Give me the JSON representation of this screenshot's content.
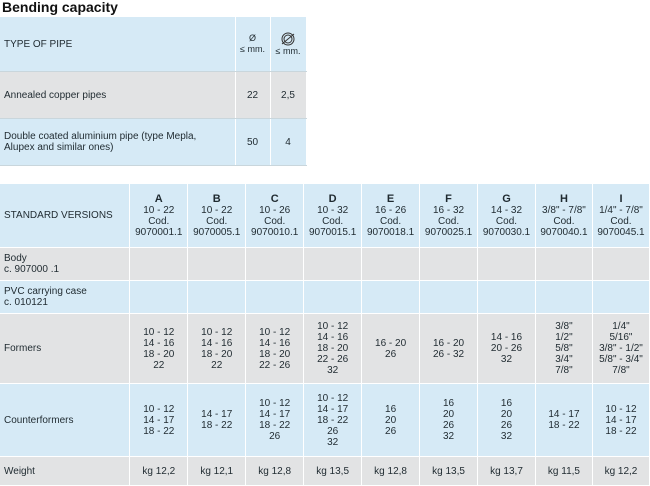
{
  "title": "Bending capacity",
  "capacity": {
    "header": {
      "type_label": "TYPE OF PIPE",
      "symbol1": "Ø",
      "unit1": "≤ mm.",
      "unit2": "≤ mm."
    },
    "rows": [
      {
        "label": "Annealed copper pipes",
        "v1": "22",
        "v2": "2,5"
      },
      {
        "label": "Double coated aluminium pipe (type Mepla, Alupex and similar ones)",
        "v1": "50",
        "v2": "4"
      }
    ]
  },
  "versions": {
    "header_label": "STANDARD VERSIONS",
    "columns": [
      {
        "letter": "A",
        "range": "10 - 22",
        "cod_label": "Cod.",
        "code": "9070001.1"
      },
      {
        "letter": "B",
        "range": "10 - 22",
        "cod_label": "Cod.",
        "code": "9070005.1"
      },
      {
        "letter": "C",
        "range": "10 - 26",
        "cod_label": "Cod.",
        "code": "9070010.1"
      },
      {
        "letter": "D",
        "range": "10 - 32",
        "cod_label": "Cod.",
        "code": "9070015.1"
      },
      {
        "letter": "E",
        "range": "16 - 26",
        "cod_label": "Cod.",
        "code": "9070018.1"
      },
      {
        "letter": "F",
        "range": "16 - 32",
        "cod_label": "Cod.",
        "code": "9070025.1"
      },
      {
        "letter": "G",
        "range": "14 - 32",
        "cod_label": "Cod.",
        "code": "9070030.1"
      },
      {
        "letter": "H",
        "range": "3/8\" - 7/8\"",
        "cod_label": "Cod.",
        "code": "9070040.1"
      },
      {
        "letter": "I",
        "range": "1/4\" - 7/8\"",
        "cod_label": "Cod.",
        "code": "9070045.1"
      }
    ],
    "body_label": [
      "Body",
      "c. 907000 .1"
    ],
    "pvc_label": [
      "PVC carrying case",
      "c. 010121"
    ],
    "dot": "●",
    "formers_label": "Formers",
    "formers": [
      [
        "10 - 12",
        "14 - 16",
        "18 - 20",
        "22"
      ],
      [
        "10 - 12",
        "14 - 16",
        "18 - 20",
        "22"
      ],
      [
        "10 - 12",
        "14 - 16",
        "18 - 20",
        "22 - 26"
      ],
      [
        "10 - 12",
        "14 - 16",
        "18 - 20",
        "22 - 26",
        "32"
      ],
      [
        "16 - 20",
        "26"
      ],
      [
        "16 - 20",
        "26 - 32"
      ],
      [
        "14 - 16",
        "20 - 26",
        "32"
      ],
      [
        "3/8\"",
        "1/2\"",
        "5/8\"",
        "3/4\"",
        "7/8\""
      ],
      [
        "1/4\"",
        "5/16\"",
        "3/8\" - 1/2\"",
        "5/8\" - 3/4\"",
        "7/8\""
      ]
    ],
    "counterformers_label": "Counterformers",
    "counterformers": [
      [
        "10 - 12",
        "14 - 17",
        "18 - 22"
      ],
      [
        "14 - 17",
        "18 - 22"
      ],
      [
        "10 - 12",
        "14 - 17",
        "18 - 22",
        "26"
      ],
      [
        "10 - 12",
        "14 - 17",
        "18 - 22",
        "26",
        "32"
      ],
      [
        "16",
        "20",
        "26"
      ],
      [
        "16",
        "20",
        "26",
        "32"
      ],
      [
        "16",
        "20",
        "26",
        "32"
      ],
      [
        "14 - 17",
        "18 - 22"
      ],
      [
        "10 - 12",
        "14 - 17",
        "18 - 22"
      ]
    ],
    "weight_label": "Weight",
    "weights": [
      "kg 12,2",
      "kg 12,1",
      "kg 12,8",
      "kg 13,5",
      "kg 12,8",
      "kg 13,5",
      "kg 13,7",
      "kg 11,5",
      "kg 12,2"
    ]
  }
}
